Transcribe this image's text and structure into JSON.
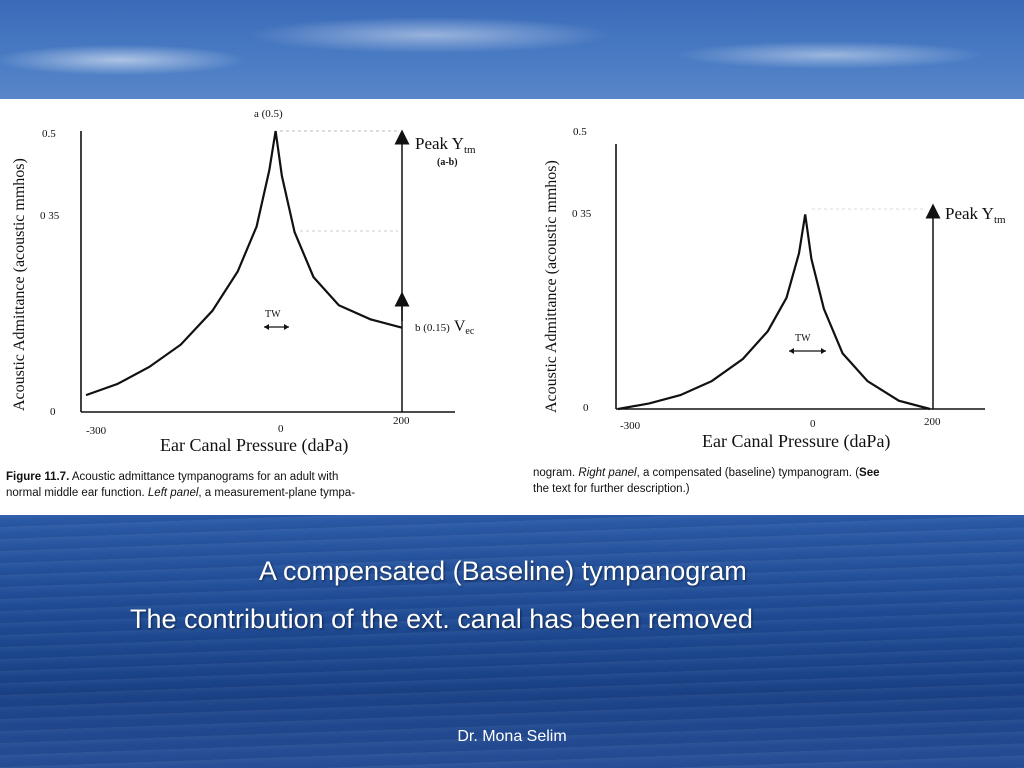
{
  "chart_data": [
    {
      "type": "line",
      "panel": "left",
      "ylabel": "Acoustic Admittance (acoustic mmhos)",
      "xlabel": "Ear Canal Pressure (daPa)",
      "x_ticks": [
        "-300",
        "0",
        "200"
      ],
      "y_ticks": [
        "0",
        "0 35",
        "0.5"
      ],
      "xlim": [
        -300,
        200
      ],
      "ylim": [
        0,
        0.5
      ],
      "series": [
        {
          "x": [
            -300,
            -250,
            -200,
            -150,
            -100,
            -60,
            -30,
            -10,
            0,
            10,
            30,
            60,
            100,
            150,
            200
          ],
          "y": [
            0.03,
            0.05,
            0.08,
            0.12,
            0.18,
            0.25,
            0.33,
            0.43,
            0.5,
            0.42,
            0.32,
            0.24,
            0.19,
            0.165,
            0.15
          ]
        }
      ],
      "annotations": {
        "peak_point": "a (0.5)",
        "low_point": "b (0.15)",
        "low_point_suffix": "V",
        "low_point_sub": "ec",
        "peak_label": "Peak Y",
        "peak_label_sub": "tm",
        "peak_label_note": "(a-b)",
        "tw": "TW"
      }
    },
    {
      "type": "line",
      "panel": "right",
      "ylabel": "Acoustic Admittance (acoustic mmhos)",
      "xlabel": "Ear Canal Pressure (daPa)",
      "x_ticks": [
        "-300",
        "0",
        "200"
      ],
      "y_ticks": [
        "0",
        "0 35",
        "0.5"
      ],
      "xlim": [
        -300,
        200
      ],
      "ylim": [
        0,
        0.5
      ],
      "series": [
        {
          "x": [
            -300,
            -250,
            -200,
            -150,
            -100,
            -60,
            -30,
            -10,
            0,
            10,
            30,
            60,
            100,
            150,
            200
          ],
          "y": [
            0.0,
            0.01,
            0.025,
            0.05,
            0.09,
            0.14,
            0.2,
            0.28,
            0.35,
            0.27,
            0.18,
            0.1,
            0.05,
            0.015,
            0.0
          ]
        }
      ],
      "annotations": {
        "peak_label": "Peak Y",
        "peak_label_sub": "tm",
        "tw": "TW"
      }
    }
  ],
  "caption_left": {
    "figure_label": "Figure 11.7.",
    "line1": " Acoustic admittance tympanograms for an adult with",
    "line2a": "normal middle ear function. ",
    "line2b": "Left panel",
    "line2c": ", a measurement-plane tympa-"
  },
  "caption_right": {
    "line1a": "nogram. ",
    "line1b": "Right panel",
    "line1c": ", a compensated (baseline) tympanogram. (",
    "line1d": "See",
    "line2": "the text for further description.)"
  },
  "slide": {
    "line1": "A compensated (Baseline) tympanogram",
    "line2": "The contribution of the ext. canal has been removed",
    "footer": "Dr. Mona Selim"
  }
}
